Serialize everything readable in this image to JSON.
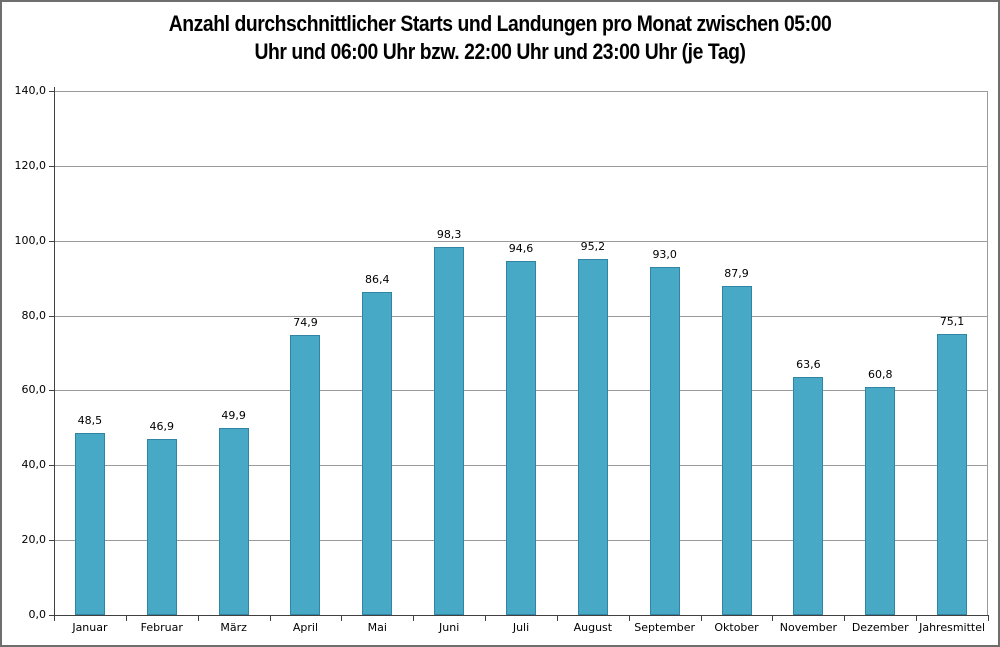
{
  "title": {
    "line1": "Anzahl durchschnittlicher Starts und Landungen pro Monat zwischen 05:00",
    "line2": "Uhr und 06:00 Uhr bzw. 22:00 Uhr und 23:00 Uhr (je Tag)"
  },
  "chart_data": {
    "type": "bar",
    "title": "Anzahl durchschnittlicher Starts und Landungen pro Monat zwischen 05:00 Uhr und 06:00 Uhr bzw. 22:00 Uhr und 23:00 Uhr (je Tag)",
    "categories": [
      "Januar",
      "Februar",
      "März",
      "April",
      "Mai",
      "Juni",
      "Juli",
      "August",
      "September",
      "Oktober",
      "November",
      "Dezember",
      "Jahresmittel"
    ],
    "values": [
      48.5,
      46.9,
      49.9,
      74.9,
      86.4,
      98.3,
      94.6,
      95.2,
      93.0,
      87.9,
      63.6,
      60.8,
      75.1
    ],
    "value_labels": [
      "48,5",
      "46,9",
      "49,9",
      "74,9",
      "86,4",
      "98,3",
      "94,6",
      "95,2",
      "93,0",
      "87,9",
      "63,6",
      "60,8",
      "75,1"
    ],
    "y_tick_labels": [
      "0,0",
      "20,0",
      "40,0",
      "60,0",
      "80,0",
      "100,0",
      "120,0",
      "140,0"
    ],
    "y_tick_values": [
      0,
      20,
      40,
      60,
      80,
      100,
      120,
      140
    ],
    "ylim": [
      0,
      140
    ],
    "xlabel": "",
    "ylabel": "",
    "grid": true,
    "legend": false,
    "bar_color": "#47a9c6",
    "bar_border_color": "#2f85a3",
    "grid_color": "#9b9b9b",
    "axis_color": "#404040",
    "text_color": "#000000",
    "background_color": "#ffffff"
  }
}
